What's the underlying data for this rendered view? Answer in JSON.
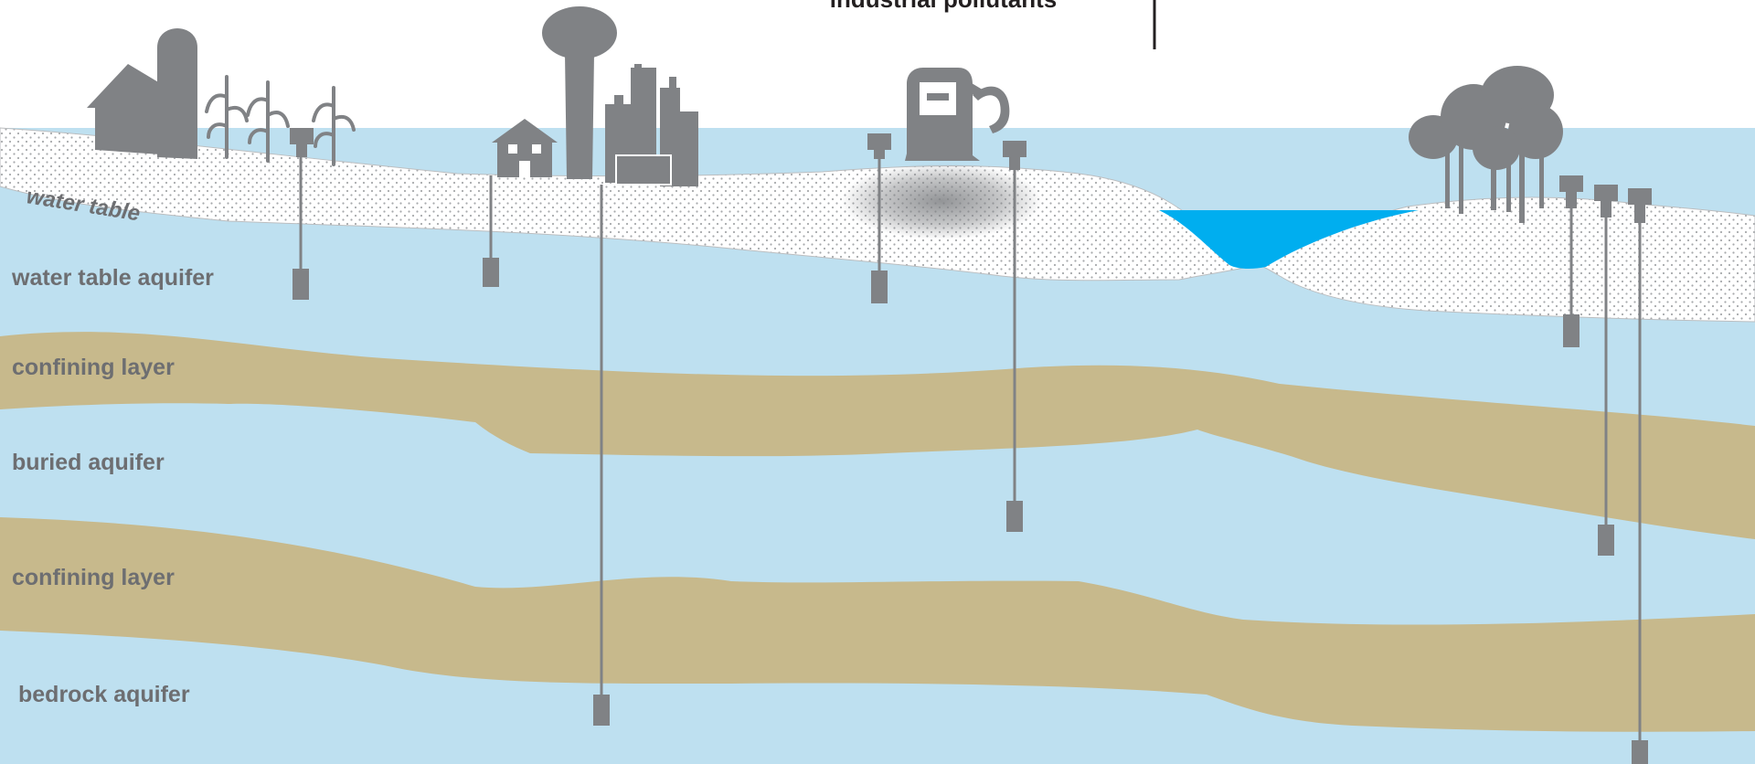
{
  "top_label": "industrial pollutants",
  "water_table_label": "water table",
  "layers": [
    "water table aquifer",
    "confining layer",
    "buried aquifer",
    "confining layer",
    "bedrock aquifer"
  ],
  "colors": {
    "aquifer": "#bee0f0",
    "confining": "#c7b98c",
    "surface_soil": "#ffffff",
    "soil_dots": "#a7a9ac",
    "surface_water": "#00aeef",
    "wells_and_icons": "#808285",
    "labels": "#6d6e71"
  },
  "icons": [
    "barn-icon",
    "silo-icon",
    "corn-icon",
    "house-icon",
    "water-tower-icon",
    "factory-icon",
    "gas-pump-icon",
    "trees-icon"
  ]
}
